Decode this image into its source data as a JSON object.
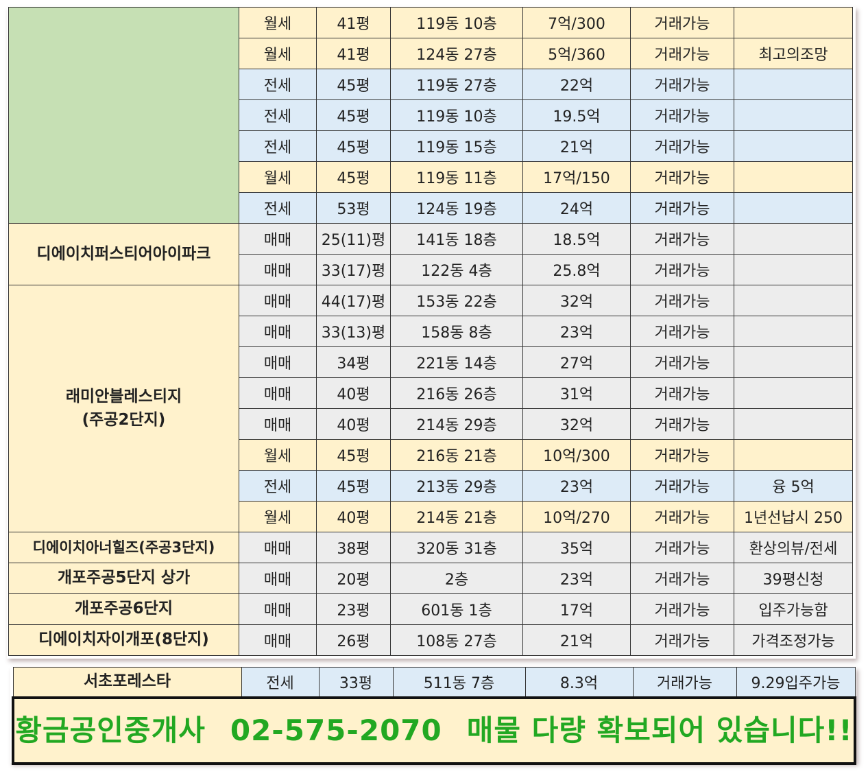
{
  "rows": [
    {
      "type": "월세",
      "area": "41평",
      "unit": "119동 10층",
      "price": "7억/300",
      "status": "거래가능",
      "note": ""
    },
    {
      "type": "월세",
      "area": "41평",
      "unit": "124동 27층",
      "price": "5억/360",
      "status": "거래가능",
      "note": "최고의조망"
    },
    {
      "type": "전세",
      "area": "45평",
      "unit": "119동 27층",
      "price": "22억",
      "status": "거래가능",
      "note": ""
    },
    {
      "type": "전세",
      "area": "45평",
      "unit": "119동 10층",
      "price": "19.5억",
      "status": "거래가능",
      "note": ""
    },
    {
      "type": "전세",
      "area": "45평",
      "unit": "119동 15층",
      "price": "21억",
      "status": "거래가능",
      "note": ""
    },
    {
      "type": "월세",
      "area": "45평",
      "unit": "119동 11층",
      "price": "17억/150",
      "status": "거래가능",
      "note": ""
    },
    {
      "type": "전세",
      "area": "53평",
      "unit": "124동 19층",
      "price": "24억",
      "status": "거래가능",
      "note": ""
    },
    {
      "type": "매매",
      "area": "25(11)평",
      "unit": "141동 18층",
      "price": "18.5억",
      "status": "거래가능",
      "note": ""
    },
    {
      "type": "매매",
      "area": "33(17)평",
      "unit": "122동 4층",
      "price": "25.8억",
      "status": "거래가능",
      "note": ""
    },
    {
      "type": "매매",
      "area": "44(17)평",
      "unit": "153동 22층",
      "price": "32억",
      "status": "거래가능",
      "note": ""
    },
    {
      "type": "매매",
      "area": "33(13)평",
      "unit": "158동 8층",
      "price": "23억",
      "status": "거래가능",
      "note": ""
    },
    {
      "type": "매매",
      "area": "34평",
      "unit": "221동 14층",
      "price": "27억",
      "status": "거래가능",
      "note": ""
    },
    {
      "type": "매매",
      "area": "40평",
      "unit": "216동 26층",
      "price": "31억",
      "status": "거래가능",
      "note": ""
    },
    {
      "type": "매매",
      "area": "40평",
      "unit": "214동 29층",
      "price": "32억",
      "status": "거래가능",
      "note": ""
    },
    {
      "type": "월세",
      "area": "45평",
      "unit": "216동 21층",
      "price": "10억/300",
      "status": "거래가능",
      "note": ""
    },
    {
      "type": "전세",
      "area": "45평",
      "unit": "213동 29층",
      "price": "23억",
      "status": "거래가능",
      "note": "융 5억"
    },
    {
      "type": "월세",
      "area": "40평",
      "unit": "214동 21층",
      "price": "10억/270",
      "status": "거래가능",
      "note": "1년선납시 250"
    },
    {
      "type": "매매",
      "area": "38평",
      "unit": "320동 31층",
      "price": "35억",
      "status": "거래가능",
      "note": "환상의뷰/전세"
    },
    {
      "type": "매매",
      "area": "20평",
      "unit": "2층",
      "price": "23억",
      "status": "거래가능",
      "note": "39평신청"
    },
    {
      "type": "매매",
      "area": "23평",
      "unit": "601동 1층",
      "price": "17억",
      "status": "거래가능",
      "note": "입주가능함"
    },
    {
      "type": "매매",
      "area": "26평",
      "unit": "108동 27층",
      "price": "21억",
      "status": "거래가능",
      "note": "가격조정가능"
    }
  ],
  "complexes": {
    "dh_first_ipark": "디에이치퍼스티어아이파크",
    "raemian_line1": "래미안블레스티지",
    "raemian_line2": "(주공2단지)",
    "dh_arnell": "디에이치아너힐즈(주공3단지)",
    "gaepo5": "개포주공5단지 상가",
    "gaepo6": "개포주공6단지",
    "dh_xi": "디에이치자이개포(8단지)"
  },
  "extra": {
    "name": "서초포레스타",
    "type": "전세",
    "area": "33평",
    "unit": "511동 7층",
    "price": "8.3억",
    "status": "거래가능",
    "note": "9.29입주가능"
  },
  "banner": {
    "agency": "황금공인중개사",
    "phone": "02-575-2070",
    "message": "매물 다량 확보되어 있습니다!!"
  },
  "colors": {
    "yellow": "#fff2cc",
    "blue": "#ddebf7",
    "gray": "#ededed",
    "green": "#c6e0b4",
    "banner_text": "#22a822"
  }
}
